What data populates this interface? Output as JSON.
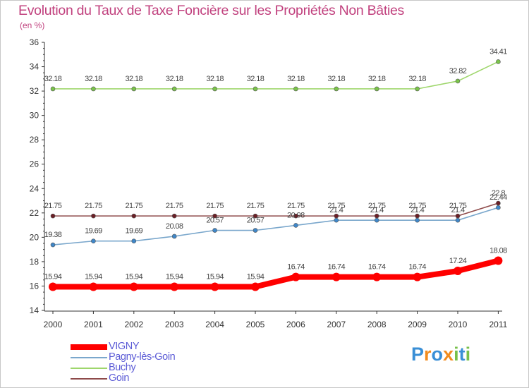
{
  "title": "Evolution du Taux de Taxe Foncière sur les Propriétés Non Bâties",
  "unit_label": "(en %)",
  "logo": {
    "letters": [
      "P",
      "r",
      "o",
      "x",
      "i",
      "t",
      "i"
    ],
    "colors": [
      "#3a8fd6",
      "#f28c1e",
      "#3a8fd6",
      "#f28c1e",
      "#77c04a",
      "#3a8fd6",
      "#77c04a"
    ]
  },
  "chart_data": {
    "type": "line",
    "title": "Evolution du Taux de Taxe Foncière sur les Propriétés Non Bâties",
    "ylabel": "(en %)",
    "xlabel": "",
    "categories": [
      "2000",
      "2001",
      "2002",
      "2003",
      "2004",
      "2005",
      "2006",
      "2007",
      "2008",
      "2009",
      "2010",
      "2011"
    ],
    "ylim": [
      14,
      36
    ],
    "yticks": [
      14,
      16,
      18,
      20,
      22,
      24,
      26,
      28,
      30,
      32,
      34,
      36
    ],
    "series": [
      {
        "name": "VIGNY",
        "color": "#ff0000",
        "values": [
          15.94,
          15.94,
          15.94,
          15.94,
          15.94,
          15.94,
          16.74,
          16.74,
          16.74,
          16.74,
          17.24,
          18.08
        ],
        "labels": [
          "15.94",
          "15.94",
          "15.94",
          "15.94",
          "15.94",
          "15.94",
          "16.74",
          "16.74",
          "16.74",
          "16.74",
          "17.24",
          "18.08"
        ]
      },
      {
        "name": "Pagny-lès-Goin",
        "color": "#7aa7cc",
        "marker": "#3f87c9",
        "values": [
          19.38,
          19.69,
          19.69,
          20.08,
          20.57,
          20.57,
          20.98,
          21.4,
          21.4,
          21.4,
          21.4,
          22.44
        ],
        "labels": [
          "19.38",
          "19.69",
          "19.69",
          "20.08",
          "20.57",
          "20.57",
          "20.98",
          "21.4",
          "21.4",
          "21.4",
          "21.4",
          "22.44"
        ]
      },
      {
        "name": "Buchy",
        "color": "#9ed66b",
        "marker": "#7ac44a",
        "values": [
          32.18,
          32.18,
          32.18,
          32.18,
          32.18,
          32.18,
          32.18,
          32.18,
          32.18,
          32.18,
          32.82,
          34.41
        ],
        "labels": [
          "32.18",
          "32.18",
          "32.18",
          "32.18",
          "32.18",
          "32.18",
          "32.18",
          "32.18",
          "32.18",
          "32.18",
          "32.82",
          "34.41"
        ]
      },
      {
        "name": "Goin",
        "color": "#8e4a4a",
        "marker": "#6b1f26",
        "values": [
          21.75,
          21.75,
          21.75,
          21.75,
          21.75,
          21.75,
          21.75,
          21.75,
          21.75,
          21.75,
          21.75,
          22.8
        ],
        "labels": [
          "21.75",
          "21.75",
          "21.75",
          "21.75",
          "21.75",
          "21.75",
          "21.75",
          "21.75",
          "21.75",
          "21.75",
          "21.75",
          "22.8"
        ]
      }
    ],
    "legend_position": "bottom-left",
    "grid": false
  }
}
